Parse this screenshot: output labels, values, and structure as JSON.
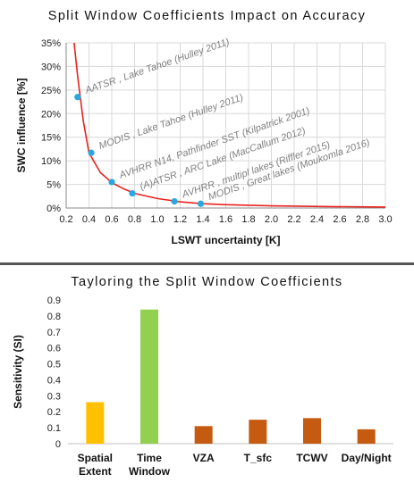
{
  "chart_data": [
    {
      "type": "line",
      "title": "Split Window Coefficients Impact on Accuracy",
      "xlabel": "LSWT uncertainty  [K]",
      "ylabel": "SWC influence [%]",
      "xlim": [
        0.2,
        3.0
      ],
      "ylim": [
        0,
        35
      ],
      "xticks": [
        "0.2",
        "0.4",
        "0.6",
        "0.8",
        "1.0",
        "1.2",
        "1.4",
        "1.6",
        "1.8",
        "2.0",
        "2.2",
        "2.4",
        "2.6",
        "2.8",
        "3.0"
      ],
      "yticks": [
        "0%",
        "5%",
        "10%",
        "15%",
        "20%",
        "25%",
        "30%",
        "35%"
      ],
      "grid": true,
      "line_color": "#e8231f",
      "point_color": "#29a8e0",
      "curve": {
        "x": [
          0.27,
          0.3,
          0.35,
          0.4,
          0.5,
          0.6,
          0.7,
          0.8,
          1.0,
          1.2,
          1.4,
          1.6,
          2.0,
          2.5,
          3.0
        ],
        "y": [
          35,
          28,
          18.5,
          11.7,
          7.5,
          5.4,
          4.1,
          3.1,
          2.0,
          1.3,
          0.9,
          0.7,
          0.45,
          0.3,
          0.2
        ]
      },
      "points": [
        {
          "x": 0.3,
          "y": 23.5,
          "label": "AATSR , Lake Tahoe (Hulley 2011)"
        },
        {
          "x": 0.42,
          "y": 11.7,
          "label": "MODIS , Lake Tahoe (Hulley 2011)"
        },
        {
          "x": 0.6,
          "y": 5.5,
          "label": "AVHRR N14, Pathfinder SST (Kilpatrick 2001)"
        },
        {
          "x": 0.78,
          "y": 3.1,
          "label": "(A)ATSR , ARC Lake (MacCallum 2012)"
        },
        {
          "x": 1.15,
          "y": 1.4,
          "label": "AVHRR , multipl lakes (Riffler 2015)"
        },
        {
          "x": 1.38,
          "y": 0.9,
          "label": "MODIS , Great lakes (Moukomla 2016)"
        }
      ]
    },
    {
      "type": "bar",
      "title": "Tayloring the Split Window Coefficients",
      "ylabel": "Sensitivity (SI)",
      "xlabel": "",
      "ylim": [
        0,
        0.9
      ],
      "yticks": [
        "0",
        "0.1",
        "0.2",
        "0.3",
        "0.4",
        "0.5",
        "0.6",
        "0.7",
        "0.8",
        "0.9"
      ],
      "categories": [
        [
          "Spatial",
          "Extent"
        ],
        [
          "Time",
          "Window"
        ],
        [
          "VZA"
        ],
        [
          "T_sfc"
        ],
        [
          "TCWV"
        ],
        [
          "Day/Night"
        ]
      ],
      "values": [
        0.26,
        0.84,
        0.11,
        0.15,
        0.16,
        0.09
      ],
      "colors": [
        "#ffc000",
        "#92d050",
        "#c55a11",
        "#c55a11",
        "#c55a11",
        "#c55a11"
      ]
    }
  ]
}
